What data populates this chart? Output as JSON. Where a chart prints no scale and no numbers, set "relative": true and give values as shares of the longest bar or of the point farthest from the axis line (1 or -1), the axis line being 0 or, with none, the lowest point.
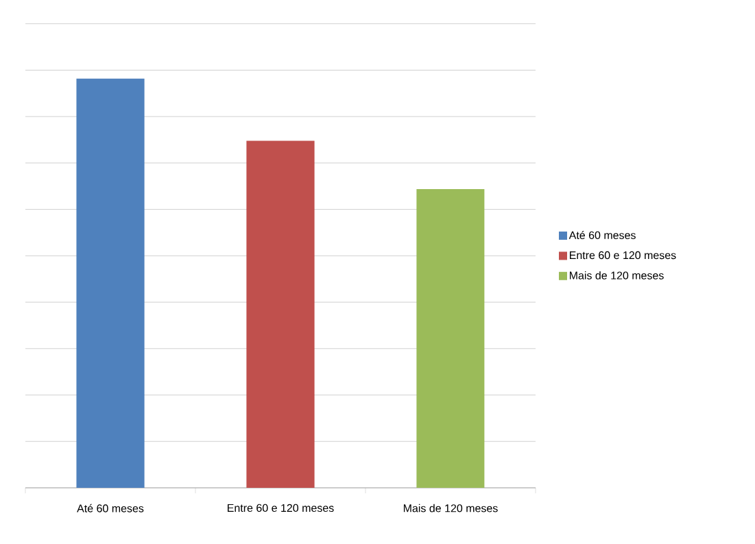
{
  "chart_data": {
    "type": "bar",
    "relative": true,
    "categories": [
      "Até 60 meses",
      "Entre 60 e 120 meses",
      "Mais de 120 meses"
    ],
    "series": [
      {
        "name": "Até 60 meses",
        "color": "#4f81bd",
        "values": [
          1,
          null,
          null
        ]
      },
      {
        "name": "Entre 60 e 120 meses",
        "color": "#c0504d",
        "values": [
          null,
          0.848,
          null
        ]
      },
      {
        "name": "Mais de 120 meses",
        "color": "#9bbb59",
        "values": [
          null,
          null,
          0.73
        ]
      }
    ],
    "grid": "y",
    "legend": "right"
  }
}
